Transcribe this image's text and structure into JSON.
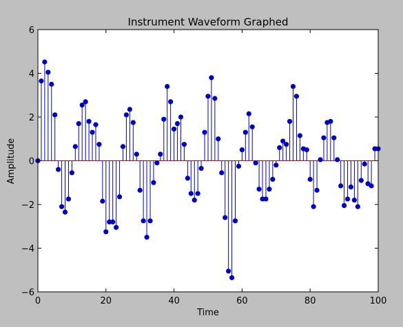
{
  "chart_data": {
    "type": "stem",
    "title": "Instrument Waveform Graphed",
    "xlabel": "Time",
    "ylabel": "Amplitude",
    "xlim": [
      0,
      100
    ],
    "ylim": [
      -6,
      6
    ],
    "xticks": [
      0,
      20,
      40,
      60,
      80,
      100
    ],
    "yticks": [
      -6,
      -4,
      -2,
      0,
      2,
      4,
      6
    ],
    "grid": false,
    "legend": "none",
    "colors": {
      "stem": "#0000bf",
      "marker": "#0000bf",
      "baseline": "#bf0000",
      "plot_background": "#ffffff",
      "figure_background": "#bfbfbf"
    },
    "x": [
      0,
      1,
      2,
      3,
      4,
      5,
      6,
      7,
      8,
      9,
      10,
      11,
      12,
      13,
      14,
      15,
      16,
      17,
      18,
      19,
      20,
      21,
      22,
      23,
      24,
      25,
      26,
      27,
      28,
      29,
      30,
      31,
      32,
      33,
      34,
      35,
      36,
      37,
      38,
      39,
      40,
      41,
      42,
      43,
      44,
      45,
      46,
      47,
      48,
      49,
      50,
      51,
      52,
      53,
      54,
      55,
      56,
      57,
      58,
      59,
      60,
      61,
      62,
      63,
      64,
      65,
      66,
      67,
      68,
      69,
      70,
      71,
      72,
      73,
      74,
      75,
      76,
      77,
      78,
      79,
      80,
      81,
      82,
      83,
      84,
      85,
      86,
      87,
      88,
      89,
      90,
      91,
      92,
      93,
      94,
      95,
      96,
      97,
      98,
      99,
      100
    ],
    "values": [
      0.0,
      3.65,
      4.52,
      4.05,
      3.5,
      2.1,
      -0.4,
      -2.1,
      -2.35,
      -1.75,
      -0.55,
      0.65,
      1.7,
      2.55,
      2.7,
      1.8,
      1.3,
      1.65,
      0.75,
      -1.85,
      -3.25,
      -2.8,
      -2.8,
      -3.05,
      -1.65,
      0.65,
      2.1,
      2.35,
      1.75,
      0.3,
      -1.35,
      -2.75,
      -3.5,
      -2.75,
      -1.0,
      -0.1,
      0.3,
      1.9,
      3.4,
      2.7,
      1.45,
      1.7,
      2.0,
      0.75,
      -0.8,
      -1.5,
      -1.8,
      -1.5,
      -0.35,
      1.3,
      2.95,
      3.8,
      2.85,
      1.0,
      -0.55,
      -2.6,
      -5.05,
      -5.35,
      -2.75,
      -0.25,
      0.5,
      1.3,
      2.15,
      1.55,
      -0.1,
      -1.3,
      -1.75,
      -1.75,
      -1.3,
      -0.85,
      -0.2,
      0.6,
      0.9,
      0.75,
      1.8,
      3.4,
      2.95,
      1.15,
      0.55,
      0.5,
      -0.85,
      -2.1,
      -1.35,
      0.05,
      1.05,
      1.75,
      1.8,
      1.05,
      0.05,
      -1.15,
      -2.05,
      -1.75,
      -1.2,
      -1.8,
      -2.1,
      -0.9,
      -0.15,
      -1.05,
      -1.15,
      0.55,
      0.55
    ]
  }
}
